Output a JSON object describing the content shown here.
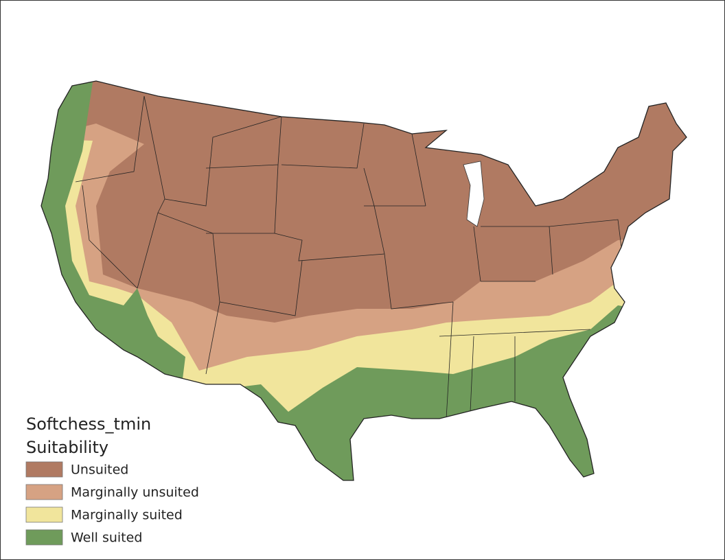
{
  "legend": {
    "title": "Softchess_tmin",
    "subtitle": "Suitability",
    "items": [
      {
        "label": "Unsuited",
        "color": "#b07a62"
      },
      {
        "label": "Marginally unsuited",
        "color": "#d6a283"
      },
      {
        "label": "Marginally suited",
        "color": "#f1e59c"
      },
      {
        "label": "Well suited",
        "color": "#6f9b5b"
      }
    ]
  }
}
